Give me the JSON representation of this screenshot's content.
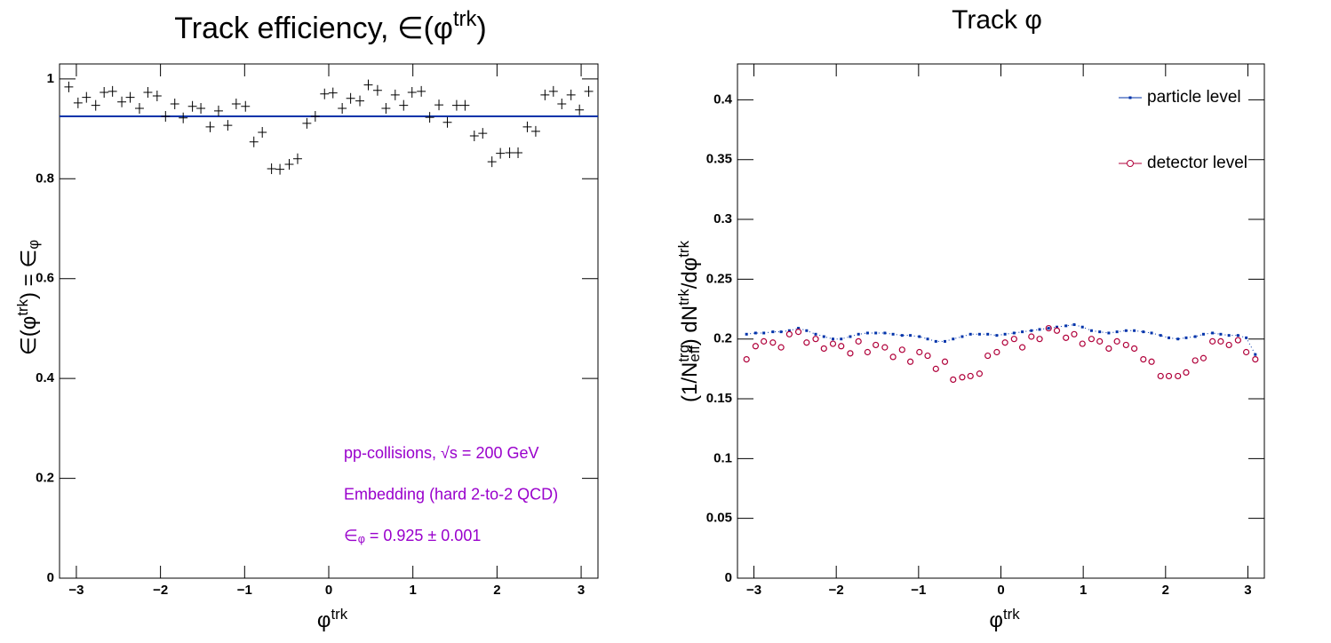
{
  "chart_data": [
    {
      "type": "scatter",
      "title": [
        "Track efficiency, ∈(φ",
        "trk",
        ")"
      ],
      "xlabel": [
        "φ",
        "trk"
      ],
      "ylabel": [
        "∈(φ",
        "trk",
        ") = ∈",
        "φ"
      ],
      "xlim": [
        -3.2,
        3.2
      ],
      "xticks": [
        {
          "value": -3,
          "label": "−3"
        },
        {
          "value": -2,
          "label": "−2"
        },
        {
          "value": -1,
          "label": "−1"
        },
        0,
        1,
        2,
        3
      ],
      "ylim": [
        0,
        1.03
      ],
      "yticks": [
        0,
        0.2,
        0.4,
        0.6,
        0.8,
        1
      ],
      "color": "#000000",
      "x": [
        -3.09,
        -2.98,
        -2.88,
        -2.77,
        -2.67,
        -2.57,
        -2.46,
        -2.36,
        -2.25,
        -2.15,
        -2.04,
        -1.94,
        -1.83,
        -1.73,
        -1.62,
        -1.52,
        -1.41,
        -1.31,
        -1.2,
        -1.1,
        -0.99,
        -0.89,
        -0.79,
        -0.68,
        -0.58,
        -0.47,
        -0.37,
        -0.26,
        -0.16,
        -0.05,
        0.05,
        0.16,
        0.26,
        0.37,
        0.47,
        0.58,
        0.68,
        0.79,
        0.89,
        0.99,
        1.1,
        1.2,
        1.31,
        1.41,
        1.52,
        1.62,
        1.73,
        1.83,
        1.94,
        2.04,
        2.15,
        2.25,
        2.36,
        2.46,
        2.57,
        2.67,
        2.77,
        2.88,
        2.98,
        3.09
      ],
      "values": [
        0.984,
        0.952,
        0.963,
        0.947,
        0.973,
        0.975,
        0.954,
        0.963,
        0.941,
        0.973,
        0.966,
        0.925,
        0.95,
        0.922,
        0.945,
        0.941,
        0.904,
        0.936,
        0.907,
        0.95,
        0.945,
        0.874,
        0.893,
        0.82,
        0.819,
        0.829,
        0.84,
        0.911,
        0.925,
        0.97,
        0.972,
        0.941,
        0.961,
        0.956,
        0.988,
        0.977,
        0.941,
        0.968,
        0.947,
        0.973,
        0.975,
        0.923,
        0.948,
        0.913,
        0.947,
        0.947,
        0.886,
        0.891,
        0.834,
        0.851,
        0.852,
        0.852,
        0.904,
        0.895,
        0.968,
        0.975,
        0.95,
        0.968,
        0.938,
        0.975
      ],
      "fit": 0.925,
      "fit_color": "#0033aa",
      "annotation_color": "#9900cc",
      "annotations": [
        [
          "pp-collisions, √s = 200 GeV"
        ],
        [
          "Embedding (hard 2-to-2 QCD)"
        ],
        [
          "∈",
          "φ",
          " = 0.925 ± 0.001"
        ]
      ]
    },
    {
      "type": "scatter",
      "title": [
        "Track φ"
      ],
      "xlabel": [
        "φ",
        "trk"
      ],
      "ylabel": [
        "(1/N",
        "trg",
        "eff",
        ") dN",
        "trk",
        "/dφ",
        "trk"
      ],
      "xlim": [
        -3.2,
        3.2
      ],
      "xticks": [
        {
          "value": -3,
          "label": "−3"
        },
        {
          "value": -2,
          "label": "−2"
        },
        {
          "value": -1,
          "label": "−1"
        },
        0,
        1,
        2,
        3
      ],
      "ylim": [
        0,
        0.43
      ],
      "yticks": [
        0,
        0.05,
        0.1,
        0.15,
        0.2,
        0.25,
        0.3,
        0.35,
        0.4
      ],
      "legend": "top-right",
      "x": [
        -3.09,
        -2.98,
        -2.88,
        -2.77,
        -2.67,
        -2.57,
        -2.46,
        -2.36,
        -2.25,
        -2.15,
        -2.04,
        -1.94,
        -1.83,
        -1.73,
        -1.62,
        -1.52,
        -1.41,
        -1.31,
        -1.2,
        -1.1,
        -0.99,
        -0.89,
        -0.79,
        -0.68,
        -0.58,
        -0.47,
        -0.37,
        -0.26,
        -0.16,
        -0.05,
        0.05,
        0.16,
        0.26,
        0.37,
        0.47,
        0.58,
        0.68,
        0.79,
        0.89,
        0.99,
        1.1,
        1.2,
        1.31,
        1.41,
        1.52,
        1.62,
        1.73,
        1.83,
        1.94,
        2.04,
        2.15,
        2.25,
        2.36,
        2.46,
        2.57,
        2.67,
        2.77,
        2.88,
        2.98,
        3.09
      ],
      "series": [
        {
          "name": "particle level",
          "color": "#0033aa",
          "values": [
            0.204,
            0.205,
            0.205,
            0.206,
            0.206,
            0.207,
            0.209,
            0.207,
            0.204,
            0.202,
            0.2,
            0.2,
            0.202,
            0.204,
            0.205,
            0.205,
            0.205,
            0.204,
            0.203,
            0.203,
            0.202,
            0.2,
            0.198,
            0.198,
            0.2,
            0.202,
            0.204,
            0.204,
            0.204,
            0.203,
            0.204,
            0.205,
            0.206,
            0.207,
            0.208,
            0.209,
            0.21,
            0.211,
            0.212,
            0.21,
            0.207,
            0.206,
            0.205,
            0.206,
            0.207,
            0.207,
            0.206,
            0.205,
            0.203,
            0.201,
            0.2,
            0.201,
            0.202,
            0.204,
            0.205,
            0.204,
            0.203,
            0.203,
            0.201,
            0.187
          ]
        },
        {
          "name": "detector level",
          "color": "#b0003a",
          "values": [
            0.183,
            0.194,
            0.198,
            0.197,
            0.193,
            0.204,
            0.206,
            0.197,
            0.2,
            0.192,
            0.196,
            0.194,
            0.188,
            0.198,
            0.189,
            0.195,
            0.193,
            0.185,
            0.191,
            0.181,
            0.189,
            0.186,
            0.175,
            0.181,
            0.166,
            0.168,
            0.169,
            0.171,
            0.186,
            0.189,
            0.197,
            0.2,
            0.193,
            0.202,
            0.2,
            0.209,
            0.207,
            0.201,
            0.204,
            0.196,
            0.2,
            0.198,
            0.192,
            0.198,
            0.195,
            0.192,
            0.183,
            0.181,
            0.169,
            0.169,
            0.169,
            0.172,
            0.182,
            0.184,
            0.198,
            0.198,
            0.195,
            0.199,
            0.189,
            0.183
          ]
        }
      ]
    }
  ]
}
